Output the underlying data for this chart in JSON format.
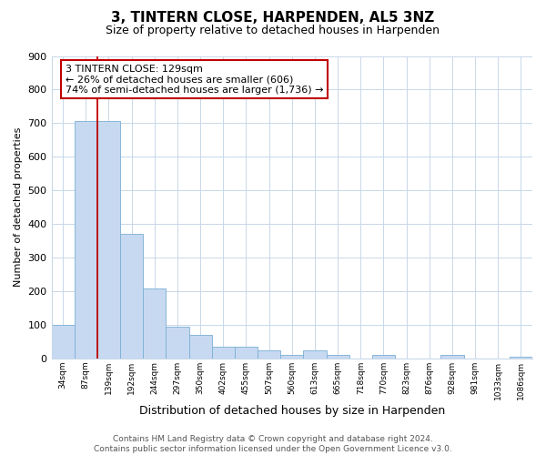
{
  "title": "3, TINTERN CLOSE, HARPENDEN, AL5 3NZ",
  "subtitle": "Size of property relative to detached houses in Harpenden",
  "xlabel": "Distribution of detached houses by size in Harpenden",
  "ylabel": "Number of detached properties",
  "bar_labels": [
    "34sqm",
    "87sqm",
    "139sqm",
    "192sqm",
    "244sqm",
    "297sqm",
    "350sqm",
    "402sqm",
    "455sqm",
    "507sqm",
    "560sqm",
    "613sqm",
    "665sqm",
    "718sqm",
    "770sqm",
    "823sqm",
    "876sqm",
    "928sqm",
    "981sqm",
    "1033sqm",
    "1086sqm"
  ],
  "bar_values": [
    101,
    706,
    706,
    371,
    209,
    94,
    71,
    35,
    35,
    25,
    10,
    25,
    10,
    0,
    10,
    0,
    0,
    10,
    0,
    0,
    5
  ],
  "bar_color": "#c6d9f1",
  "bar_edge_color": "#7bafd4",
  "vline_x_idx": 2,
  "vline_color": "#c00000",
  "annotation_line1": "3 TINTERN CLOSE: 129sqm",
  "annotation_line2": "← 26% of detached houses are smaller (606)",
  "annotation_line3": "74% of semi-detached houses are larger (1,736) →",
  "annotation_box_color": "#ffffff",
  "annotation_box_edge": "#c00000",
  "ylim": [
    0,
    900
  ],
  "yticks": [
    0,
    100,
    200,
    300,
    400,
    500,
    600,
    700,
    800,
    900
  ],
  "footer": "Contains HM Land Registry data © Crown copyright and database right 2024.\nContains public sector information licensed under the Open Government Licence v3.0.",
  "bg_color": "#ffffff",
  "grid_color": "#c8d8e8"
}
